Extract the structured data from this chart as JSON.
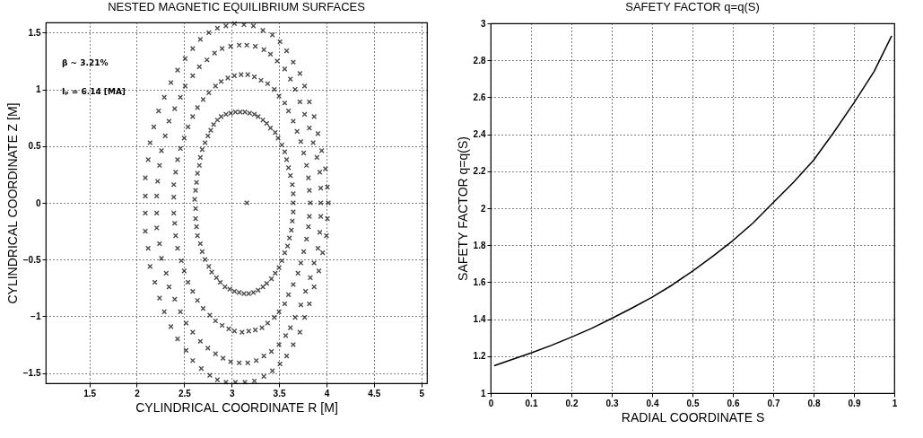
{
  "chart_data": [
    {
      "type": "scatter",
      "title": "NESTED MAGNETIC EQUILIBRIUM SURFACES",
      "xlabel": "CYLINDRICAL COORDINATE  R [M]",
      "ylabel": "CYLINDRICAL COORDINATE  Z [M]",
      "xlim": [
        1.04,
        5.06
      ],
      "ylim": [
        -1.59,
        1.59
      ],
      "xticks": [
        1.5,
        2,
        2.5,
        3,
        3.5,
        4,
        4.5,
        5
      ],
      "yticks": [
        -1.5,
        -1,
        -0.5,
        0,
        0.5,
        1,
        1.5
      ],
      "grid": true,
      "marker": "cross",
      "annotations": [
        "β ~ 3.21%",
        "Iₚ = 6.14 [MA]"
      ],
      "series": [
        {
          "color": "#000000",
          "x": [
            2.09,
            2.09,
            2.12,
            2.14,
            2.18,
            2.23,
            2.29,
            2.36,
            2.43,
            2.51,
            2.59,
            2.67,
            2.76,
            2.85,
            2.94,
            3.03,
            3.13,
            3.23,
            3.33,
            3.43,
            3.51,
            3.58,
            3.65,
            3.72,
            3.77,
            3.82,
            3.87,
            3.91,
            3.95,
            3.99,
            4.01,
            4.02,
            2.09,
            2.09,
            2.12,
            2.14,
            2.19,
            2.24,
            2.29,
            2.36,
            2.43,
            2.52,
            2.59,
            2.68,
            2.77,
            2.85,
            2.94,
            3.04,
            3.14,
            3.24,
            3.34,
            3.43,
            3.51,
            3.58,
            3.65,
            3.72,
            3.77,
            3.82,
            3.87,
            3.92,
            3.96,
            4.0,
            4.01
          ],
          "values": [
            0.06,
            0.22,
            0.38,
            0.53,
            0.67,
            0.81,
            0.93,
            1.06,
            1.17,
            1.27,
            1.36,
            1.44,
            1.5,
            1.54,
            1.56,
            1.58,
            1.57,
            1.56,
            1.52,
            1.48,
            1.42,
            1.34,
            1.24,
            1.14,
            1.03,
            0.89,
            0.76,
            0.61,
            0.46,
            0.3,
            0.14,
            0,
            -0.09,
            -0.25,
            -0.4,
            -0.56,
            -0.7,
            -0.84,
            -0.96,
            -1.09,
            -1.2,
            -1.3,
            -1.39,
            -1.46,
            -1.52,
            -1.56,
            -1.58,
            -1.58,
            -1.58,
            -1.57,
            -1.53,
            -1.48,
            -1.42,
            -1.35,
            -1.25,
            -1.14,
            -1.01,
            -0.89,
            -0.74,
            -0.6,
            -0.44,
            -0.29,
            -0.14
          ]
        },
        {
          "color": "#000000",
          "x": [
            2.21,
            2.22,
            2.24,
            2.26,
            2.3,
            2.34,
            2.4,
            2.46,
            2.51,
            2.59,
            2.66,
            2.74,
            2.82,
            2.9,
            2.99,
            3.08,
            3.16,
            3.25,
            3.34,
            3.41,
            3.48,
            3.56,
            3.62,
            3.67,
            3.72,
            3.77,
            3.82,
            3.86,
            3.9,
            3.93,
            3.94,
            3.94,
            2.21,
            2.21,
            2.24,
            2.26,
            2.31,
            2.34,
            2.4,
            2.46,
            2.52,
            2.59,
            2.67,
            2.75,
            2.83,
            2.91,
            2.99,
            3.08,
            3.17,
            3.26,
            3.34,
            3.42,
            3.5,
            3.57,
            3.62,
            3.67,
            3.73,
            3.78,
            3.83,
            3.87,
            3.91,
            3.93,
            3.94
          ],
          "values": [
            0.06,
            0.19,
            0.33,
            0.46,
            0.59,
            0.72,
            0.83,
            0.93,
            1.03,
            1.12,
            1.2,
            1.26,
            1.32,
            1.36,
            1.38,
            1.39,
            1.39,
            1.38,
            1.35,
            1.31,
            1.25,
            1.18,
            1.09,
            1.0,
            0.89,
            0.78,
            0.66,
            0.53,
            0.4,
            0.27,
            0.13,
            0,
            -0.09,
            -0.22,
            -0.36,
            -0.49,
            -0.62,
            -0.74,
            -0.85,
            -0.96,
            -1.06,
            -1.14,
            -1.22,
            -1.28,
            -1.33,
            -1.37,
            -1.4,
            -1.41,
            -1.41,
            -1.39,
            -1.35,
            -1.31,
            -1.25,
            -1.17,
            -1.1,
            -1.01,
            -0.9,
            -0.78,
            -0.66,
            -0.53,
            -0.4,
            -0.26,
            -0.12
          ]
        },
        {
          "color": "#000000",
          "x": [
            2.39,
            2.39,
            2.41,
            2.43,
            2.46,
            2.5,
            2.54,
            2.59,
            2.64,
            2.7,
            2.76,
            2.83,
            2.89,
            2.96,
            3.03,
            3.1,
            3.17,
            3.24,
            3.31,
            3.38,
            3.45,
            3.5,
            3.56,
            3.6,
            3.65,
            3.69,
            3.73,
            3.76,
            3.79,
            3.81,
            3.82,
            3.83,
            2.39,
            2.4,
            2.41,
            2.43,
            2.47,
            2.5,
            2.54,
            2.59,
            2.64,
            2.7,
            2.77,
            2.83,
            2.9,
            2.97,
            3.03,
            3.11,
            3.18,
            3.25,
            3.32,
            3.38,
            3.45,
            3.5,
            3.56,
            3.6,
            3.65,
            3.7,
            3.73,
            3.76,
            3.79,
            3.81,
            3.82
          ],
          "values": [
            0.05,
            0.16,
            0.27,
            0.38,
            0.48,
            0.57,
            0.67,
            0.76,
            0.84,
            0.91,
            0.97,
            1.03,
            1.07,
            1.1,
            1.12,
            1.13,
            1.13,
            1.11,
            1.08,
            1.05,
            1.0,
            0.94,
            0.88,
            0.81,
            0.72,
            0.63,
            0.54,
            0.44,
            0.33,
            0.22,
            0.11,
            0,
            -0.09,
            -0.18,
            -0.29,
            -0.4,
            -0.51,
            -0.6,
            -0.7,
            -0.78,
            -0.86,
            -0.93,
            -0.99,
            -1.04,
            -1.08,
            -1.11,
            -1.13,
            -1.14,
            -1.13,
            -1.12,
            -1.1,
            -1.06,
            -1.01,
            -0.96,
            -0.89,
            -0.81,
            -0.72,
            -0.62,
            -0.53,
            -0.43,
            -0.32,
            -0.21,
            -0.12
          ]
        },
        {
          "color": "#000000",
          "x": [
            2.61,
            2.62,
            2.63,
            2.64,
            2.66,
            2.67,
            2.69,
            2.72,
            2.75,
            2.78,
            2.81,
            2.85,
            2.89,
            2.94,
            2.99,
            3.04,
            3.09,
            3.14,
            3.19,
            3.24,
            3.28,
            3.33,
            3.37,
            3.41,
            3.46,
            3.49,
            3.53,
            3.56,
            3.58,
            3.6,
            3.62,
            3.64,
            3.65,
            3.65,
            2.62,
            2.62,
            2.63,
            2.64,
            2.67,
            2.69,
            2.72,
            2.76,
            2.79,
            2.84,
            2.88,
            2.93,
            2.98,
            3.03,
            3.08,
            3.13,
            3.18,
            3.23,
            3.28,
            3.33,
            3.37,
            3.42,
            3.46,
            3.5,
            3.53,
            3.56,
            3.59,
            3.61,
            3.63,
            3.64,
            3.65
          ],
          "values": [
            0.03,
            0.11,
            0.18,
            0.26,
            0.33,
            0.4,
            0.47,
            0.53,
            0.59,
            0.64,
            0.69,
            0.73,
            0.76,
            0.78,
            0.79,
            0.8,
            0.8,
            0.8,
            0.79,
            0.78,
            0.76,
            0.73,
            0.7,
            0.66,
            0.62,
            0.57,
            0.51,
            0.45,
            0.38,
            0.31,
            0.24,
            0.16,
            0.08,
            0,
            -0.05,
            -0.14,
            -0.21,
            -0.29,
            -0.36,
            -0.43,
            -0.5,
            -0.56,
            -0.61,
            -0.66,
            -0.7,
            -0.74,
            -0.76,
            -0.78,
            -0.79,
            -0.8,
            -0.8,
            -0.79,
            -0.77,
            -0.74,
            -0.71,
            -0.67,
            -0.62,
            -0.57,
            -0.51,
            -0.44,
            -0.38,
            -0.31,
            -0.24,
            -0.16,
            -0.08
          ]
        },
        {
          "color": "#000000",
          "x": [
            3.16
          ],
          "values": [
            0
          ]
        }
      ]
    },
    {
      "type": "line",
      "title": "SAFETY FACTOR q=q(S)",
      "xlabel": "RADIAL COORDINATE  S",
      "ylabel": "SAFETY FACTOR q=q(S)",
      "xlim": [
        0,
        1
      ],
      "ylim": [
        1,
        3
      ],
      "xticks": [
        0,
        0.1,
        0.2,
        0.3,
        0.4,
        0.5,
        0.6,
        0.7,
        0.8,
        0.9,
        1
      ],
      "yticks": [
        1,
        1.2,
        1.4,
        1.6,
        1.8,
        2,
        2.2,
        2.4,
        2.6,
        2.8,
        3
      ],
      "grid": true,
      "series": [
        {
          "color": "#000000",
          "x": [
            0.01,
            0.05,
            0.1,
            0.15,
            0.2,
            0.25,
            0.3,
            0.35,
            0.4,
            0.45,
            0.5,
            0.55,
            0.6,
            0.65,
            0.7,
            0.75,
            0.8,
            0.85,
            0.9,
            0.95,
            0.993
          ],
          "values": [
            1.149,
            1.18,
            1.217,
            1.258,
            1.303,
            1.35,
            1.404,
            1.46,
            1.519,
            1.585,
            1.66,
            1.74,
            1.825,
            1.92,
            2.03,
            2.14,
            2.26,
            2.41,
            2.57,
            2.74,
            2.93
          ]
        }
      ]
    }
  ]
}
